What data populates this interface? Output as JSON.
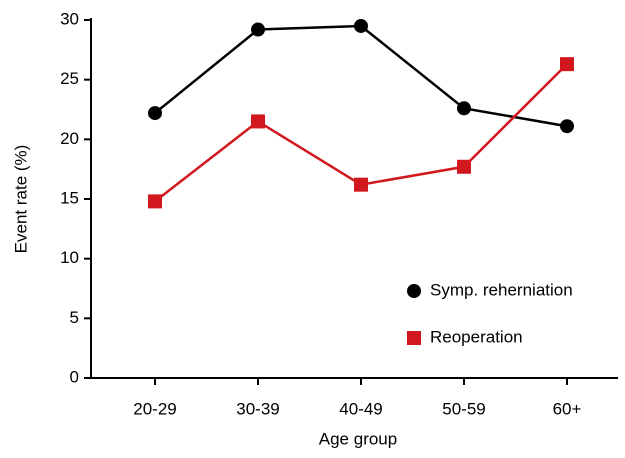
{
  "chart_data": {
    "type": "line",
    "xlabel": "Age group",
    "ylabel": "Event rate (%)",
    "categories": [
      "20-29",
      "30-39",
      "40-49",
      "50-59",
      "60+"
    ],
    "series": [
      {
        "name": "Symp. reherniation",
        "color": "#000000",
        "marker": "circle",
        "values": [
          22.2,
          29.2,
          29.5,
          22.6,
          21.1
        ]
      },
      {
        "name": "Reoperation",
        "color": "#d0181e",
        "marker": "square",
        "values": [
          14.8,
          21.5,
          16.2,
          17.7,
          26.3
        ]
      }
    ],
    "ylim": [
      0,
      30
    ],
    "yticks": [
      0,
      5,
      10,
      15,
      20,
      25,
      30
    ],
    "grid": false,
    "legend": "lower right"
  }
}
